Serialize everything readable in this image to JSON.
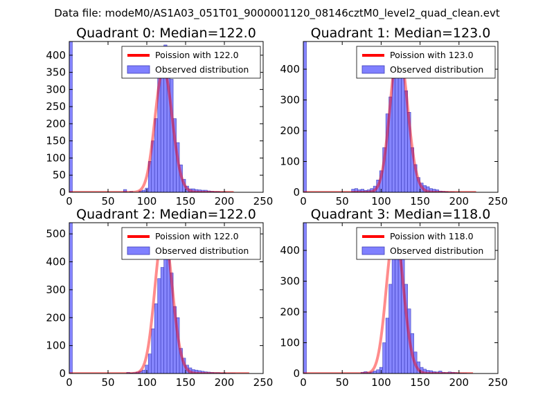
{
  "suptitle": "Data file: modeM0/AS1A03_051T01_9000001120_08146cztM0_level2_quad_clean.evt",
  "colors": {
    "bar_fill": "#8080ff",
    "bar_edge": "#3d3db8",
    "poisson": "#ff0000",
    "axis": "#000000"
  },
  "chart_data": [
    {
      "type": "bar",
      "title": "Quadrant 0: Median=122.0",
      "xlim": [
        0,
        250
      ],
      "ylim": [
        0,
        440
      ],
      "xticks": [
        0,
        50,
        100,
        150,
        200,
        250
      ],
      "yticks": [
        0,
        50,
        100,
        150,
        200,
        250,
        300,
        350,
        400
      ],
      "legend": {
        "location": "upper right",
        "entries": [
          "Poission with 122.0",
          "Observed distribution"
        ]
      },
      "poisson_mean": 122.0,
      "poisson_peak": 360,
      "poisson_xmax": 212,
      "bin_width": 4,
      "zero_bin": 440,
      "hist_bins": [
        70,
        78,
        90,
        94,
        98,
        102,
        106,
        110,
        114,
        118,
        122,
        126,
        130,
        134,
        138,
        142,
        146,
        150,
        154,
        158,
        162,
        166,
        170,
        174,
        178,
        182,
        186,
        190,
        194,
        198
      ],
      "hist_values": [
        8,
        2,
        4,
        6,
        12,
        90,
        150,
        215,
        340,
        345,
        430,
        365,
        330,
        215,
        145,
        80,
        38,
        18,
        10,
        10,
        8,
        7,
        6,
        6,
        4,
        3,
        2,
        2,
        1,
        1
      ]
    },
    {
      "type": "bar",
      "title": "Quadrant 1: Median=123.0",
      "xlim": [
        0,
        250
      ],
      "ylim": [
        0,
        490
      ],
      "xticks": [
        0,
        50,
        100,
        150,
        200,
        250
      ],
      "yticks": [
        0,
        100,
        200,
        300,
        400
      ],
      "legend": {
        "location": "upper right",
        "entries": [
          "Poission with 123.0",
          "Observed distribution"
        ]
      },
      "poisson_mean": 123.0,
      "poisson_peak": 470,
      "poisson_xmax": 222,
      "bin_width": 4,
      "zero_bin": 490,
      "hist_bins": [
        62,
        66,
        70,
        74,
        78,
        82,
        86,
        90,
        94,
        98,
        102,
        106,
        110,
        114,
        118,
        122,
        126,
        130,
        134,
        138,
        142,
        146,
        150,
        154,
        158,
        162,
        166,
        170,
        174,
        178,
        182,
        186,
        190
      ],
      "hist_values": [
        10,
        12,
        8,
        10,
        6,
        8,
        12,
        20,
        40,
        70,
        145,
        255,
        310,
        370,
        410,
        450,
        380,
        330,
        260,
        145,
        90,
        48,
        30,
        22,
        18,
        12,
        10,
        8,
        4,
        3,
        2,
        1,
        1
      ]
    },
    {
      "type": "bar",
      "title": "Quadrant 2: Median=122.0",
      "xlim": [
        0,
        250
      ],
      "ylim": [
        0,
        540
      ],
      "xticks": [
        0,
        50,
        100,
        150,
        200,
        250
      ],
      "yticks": [
        0,
        100,
        200,
        300,
        400,
        500
      ],
      "legend": {
        "location": "upper right",
        "entries": [
          "Poission with 122.0",
          "Observed distribution"
        ]
      },
      "poisson_mean": 122.0,
      "poisson_peak": 515,
      "poisson_xmax": 232,
      "bin_width": 4,
      "zero_bin": 540,
      "hist_bins": [
        74,
        78,
        82,
        86,
        90,
        94,
        98,
        102,
        106,
        110,
        114,
        118,
        122,
        126,
        130,
        134,
        138,
        142,
        146,
        150,
        154,
        158,
        162,
        166,
        170,
        174,
        178,
        182,
        186,
        190,
        194,
        198,
        202,
        206,
        210
      ],
      "hist_values": [
        4,
        2,
        3,
        5,
        8,
        12,
        30,
        70,
        160,
        250,
        340,
        380,
        500,
        440,
        360,
        240,
        200,
        90,
        55,
        30,
        20,
        14,
        12,
        10,
        8,
        6,
        5,
        4,
        3,
        3,
        2,
        2,
        1,
        1,
        1
      ]
    },
    {
      "type": "bar",
      "title": "Quadrant 3: Median=118.0",
      "xlim": [
        0,
        250
      ],
      "ylim": [
        0,
        490
      ],
      "xticks": [
        0,
        50,
        100,
        150,
        200,
        250
      ],
      "yticks": [
        0,
        100,
        200,
        300,
        400
      ],
      "legend": {
        "location": "upper right",
        "entries": [
          "Poission with 118.0",
          "Observed distribution"
        ]
      },
      "poisson_mean": 118.0,
      "poisson_peak": 468,
      "poisson_xmax": 218,
      "bin_width": 4,
      "zero_bin": 490,
      "hist_bins": [
        74,
        78,
        82,
        86,
        90,
        94,
        98,
        102,
        106,
        110,
        114,
        118,
        122,
        126,
        130,
        134,
        138,
        142,
        146,
        150,
        154,
        158,
        162,
        166,
        170,
        174,
        178,
        182,
        186,
        190,
        194,
        198,
        202,
        206
      ],
      "hist_values": [
        4,
        6,
        3,
        5,
        8,
        12,
        20,
        100,
        180,
        290,
        380,
        440,
        450,
        380,
        290,
        210,
        130,
        70,
        38,
        20,
        14,
        10,
        9,
        6,
        5,
        8,
        4,
        3,
        5,
        4,
        3,
        1,
        1,
        1
      ]
    }
  ]
}
